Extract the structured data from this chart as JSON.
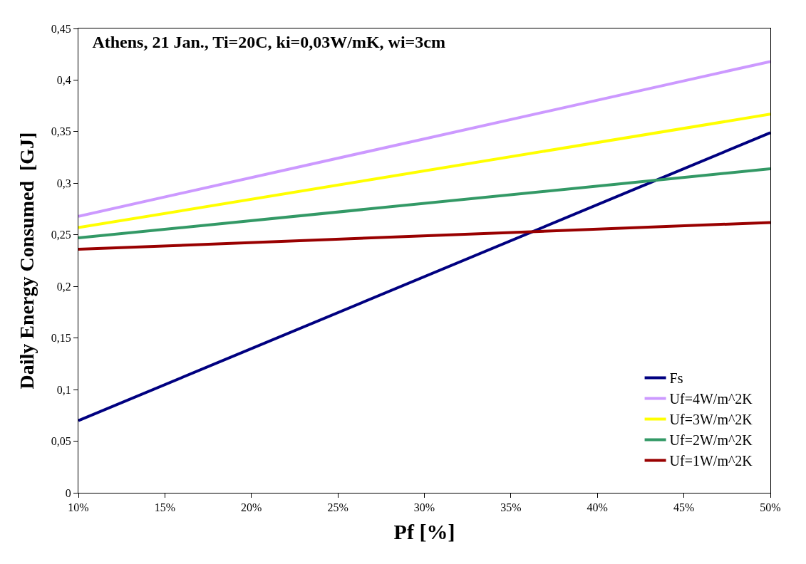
{
  "chart_data": {
    "type": "line",
    "title": "Athens, 21 Jan., Ti=20C, ki=0,03W/mK, wi=3cm",
    "xlabel": "Pf [%]",
    "ylabel": "Daily Energy Consumed  [GJ]",
    "x": [
      10,
      50
    ],
    "series": [
      {
        "name": "Fs",
        "color": "#000080",
        "values": [
          0.07,
          0.349
        ]
      },
      {
        "name": "Uf=4W/m^2K",
        "color": "#cc99ff",
        "values": [
          0.268,
          0.418
        ]
      },
      {
        "name": "Uf=3W/m^2K",
        "color": "#ffff00",
        "values": [
          0.257,
          0.367
        ]
      },
      {
        "name": "Uf=2W/m^2K",
        "color": "#339966",
        "values": [
          0.247,
          0.314
        ]
      },
      {
        "name": "Uf=1W/m^2K",
        "color": "#990000",
        "values": [
          0.236,
          0.262
        ]
      }
    ],
    "xlim": [
      10,
      50
    ],
    "xticks": [
      {
        "value": 10,
        "label": "10%"
      },
      {
        "value": 15,
        "label": "15%"
      },
      {
        "value": 20,
        "label": "20%"
      },
      {
        "value": 25,
        "label": "25%"
      },
      {
        "value": 30,
        "label": "30%"
      },
      {
        "value": 35,
        "label": "35%"
      },
      {
        "value": 40,
        "label": "40%"
      },
      {
        "value": 45,
        "label": "45%"
      },
      {
        "value": 50,
        "label": "50%"
      }
    ],
    "ylim": [
      0,
      0.45
    ],
    "yticks": [
      0,
      {
        "value": 0.05,
        "label": "0,05"
      },
      {
        "value": 0.1,
        "label": "0,1"
      },
      {
        "value": 0.15,
        "label": "0,15"
      },
      {
        "value": 0.2,
        "label": "0,2"
      },
      {
        "value": 0.25,
        "label": "0,25"
      },
      {
        "value": 0.3,
        "label": "0,3"
      },
      {
        "value": 0.35,
        "label": "0,35"
      },
      {
        "value": 0.4,
        "label": "0,4"
      },
      {
        "value": 0.45,
        "label": "0,45"
      }
    ],
    "legend": "bottom right",
    "marker": "none",
    "line_style": "solid"
  }
}
